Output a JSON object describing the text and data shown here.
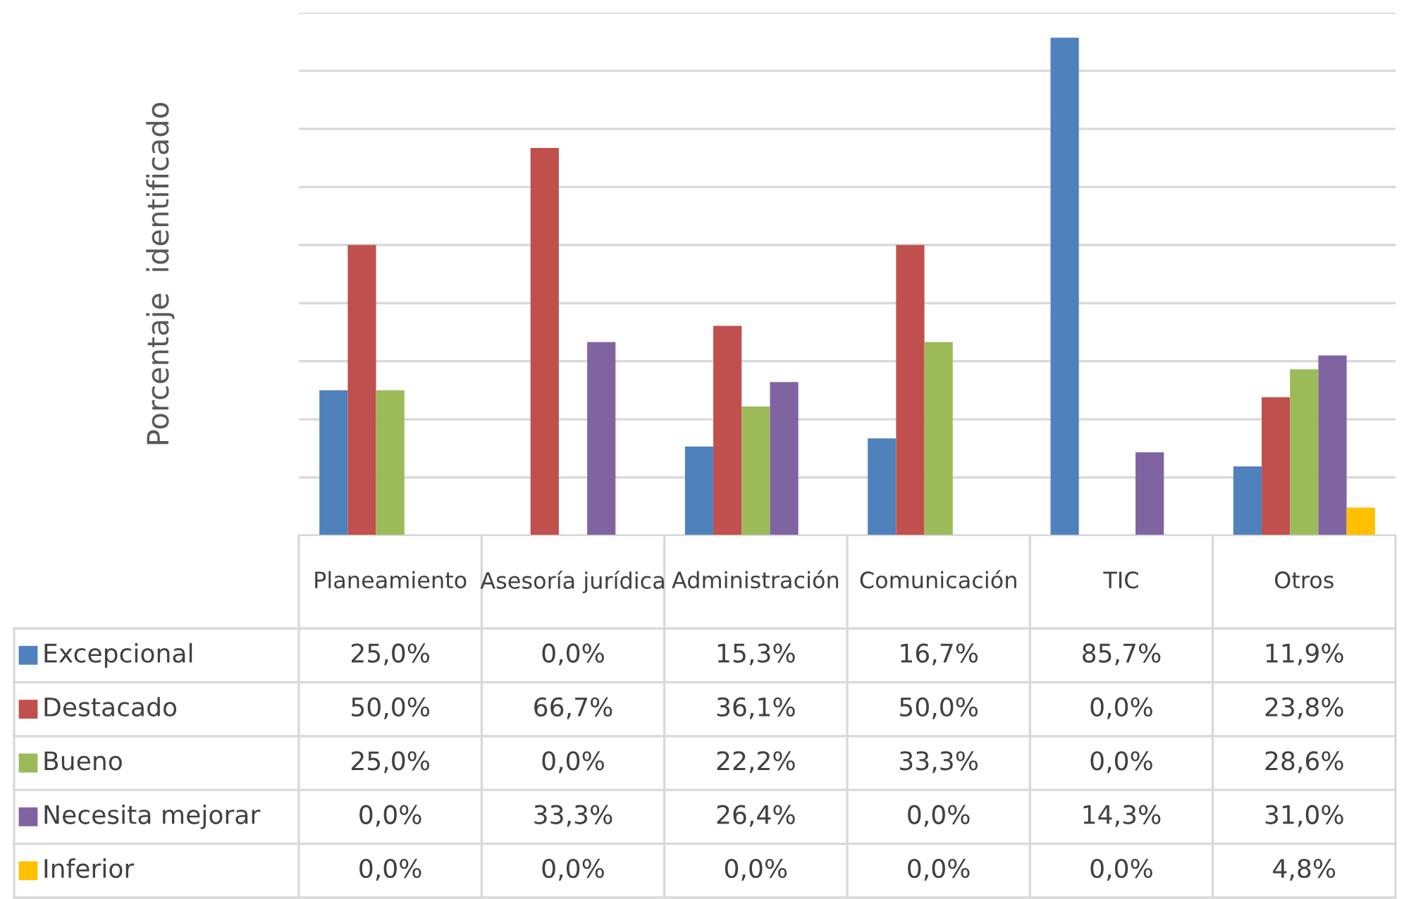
{
  "chart_data": {
    "type": "bar",
    "ylabel": "Porcentaje  identificado",
    "categories": [
      "Planeamiento",
      "Asesoría jurídica",
      "Administración",
      "Comunicación",
      "TIC",
      "Otros"
    ],
    "series": [
      {
        "name": "Excepcional",
        "color": "#4f81bd",
        "values": [
          25.0,
          0.0,
          15.3,
          16.7,
          85.7,
          11.9
        ],
        "value_labels": [
          "25,0%",
          "0,0%",
          "15,3%",
          "16,7%",
          "85,7%",
          "11,9%"
        ]
      },
      {
        "name": "Destacado",
        "color": "#c0504d",
        "values": [
          50.0,
          66.7,
          36.1,
          50.0,
          0.0,
          23.8
        ],
        "value_labels": [
          "50,0%",
          "66,7%",
          "36,1%",
          "50,0%",
          "0,0%",
          "23,8%"
        ]
      },
      {
        "name": "Bueno",
        "color": "#9bbb59",
        "values": [
          25.0,
          0.0,
          22.2,
          33.3,
          0.0,
          28.6
        ],
        "value_labels": [
          "25,0%",
          "0,0%",
          "22,2%",
          "33,3%",
          "0,0%",
          "28,6%"
        ]
      },
      {
        "name": "Necesita mejorar",
        "color": "#8064a2",
        "values": [
          0.0,
          33.3,
          26.4,
          0.0,
          14.3,
          31.0
        ],
        "value_labels": [
          "0,0%",
          "33,3%",
          "26,4%",
          "0,0%",
          "14,3%",
          "31,0%"
        ]
      },
      {
        "name": "Inferior",
        "color": "#ffc000",
        "values": [
          0.0,
          0.0,
          0.0,
          0.0,
          0.0,
          4.8
        ],
        "value_labels": [
          "0,0%",
          "0,0%",
          "0,0%",
          "0,0%",
          "0,0%",
          "4,8%"
        ]
      }
    ],
    "ylim": [
      0,
      90
    ],
    "yticks": [
      {
        "value": 0,
        "label": null
      },
      {
        "value": 10,
        "label": null
      },
      {
        "value": 20,
        "label": null
      },
      {
        "value": 30,
        "label": null
      },
      {
        "value": 40,
        "label": null
      },
      {
        "value": 50,
        "label": null
      },
      {
        "value": 60,
        "label": null
      },
      {
        "value": 70,
        "label": null
      },
      {
        "value": 80,
        "label": null
      },
      {
        "value": 90,
        "label": null
      }
    ],
    "grid": "y",
    "legend": "bottom left",
    "tick_labels": "x"
  }
}
